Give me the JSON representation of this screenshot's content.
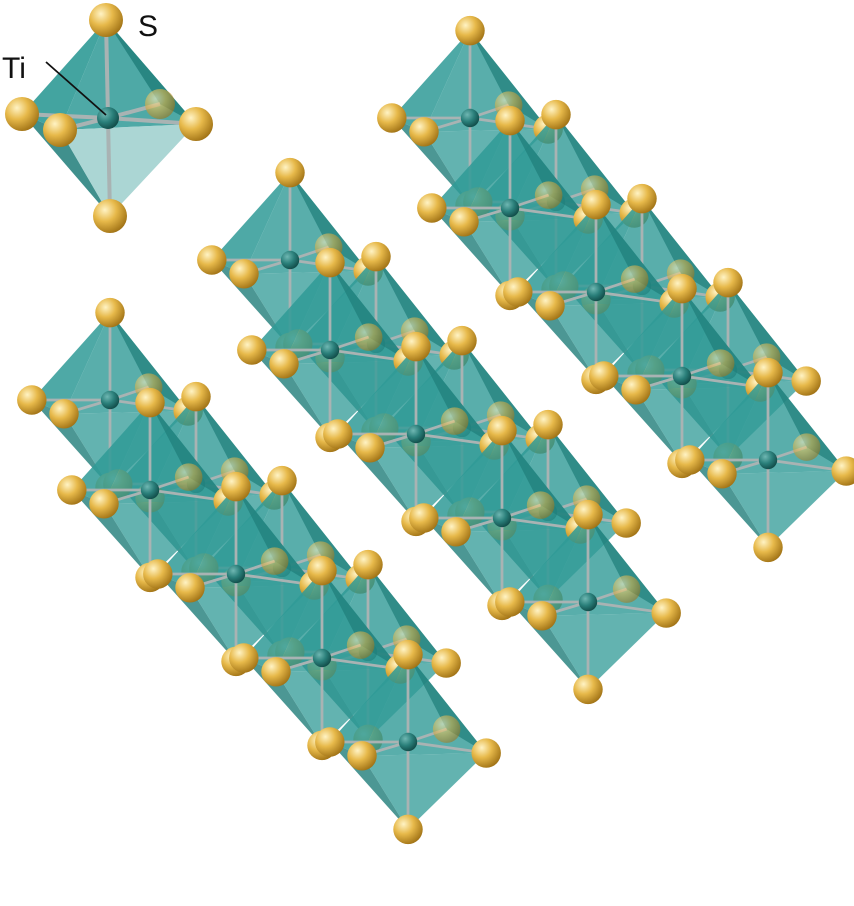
{
  "labels": {
    "sulfur": "S",
    "titanium": "Ti"
  },
  "colors": {
    "octahedron_face": "#2f9a96",
    "octahedron_face_dark": "#1f7d79",
    "sulfur_atom": "#e3b443",
    "titanium_atom": "#27706c",
    "bond": "#a9b3b3",
    "leader_line": "#111111"
  }
}
